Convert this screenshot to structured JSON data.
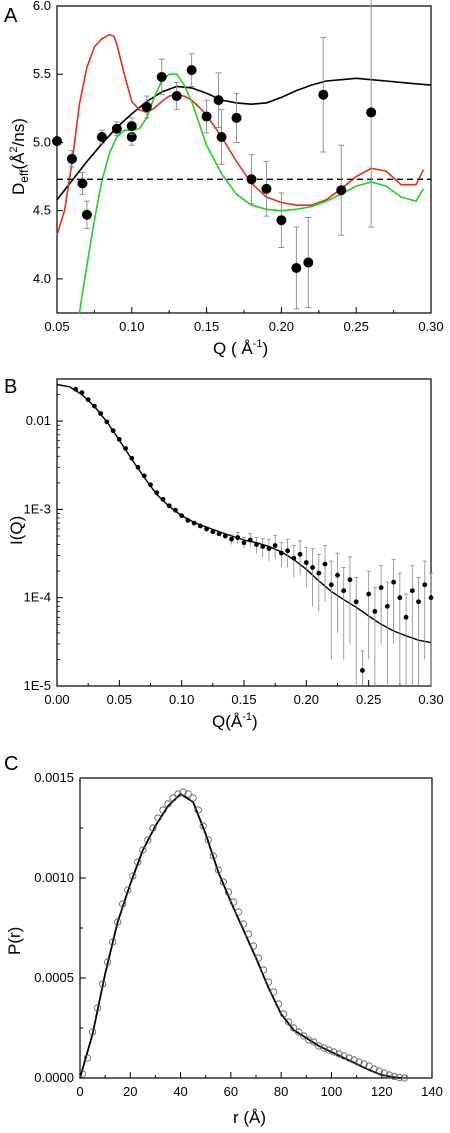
{
  "chart_data": [
    {
      "panel": "A",
      "type": "scatter",
      "xlabel": "Q (Å-1)",
      "ylabel": "Deff(Å2/ns)",
      "xlim": [
        0.05,
        0.3
      ],
      "ylim": [
        3.75,
        6.0
      ],
      "xticks": [
        "0.05",
        "0.10",
        "0.15",
        "0.20",
        "0.25",
        "0.30"
      ],
      "yticks": [
        "4.0",
        "4.5",
        "5.0",
        "5.5",
        "6.0"
      ],
      "points": [
        {
          "x": 0.05,
          "y": 5.01,
          "err": 0
        },
        {
          "x": 0.06,
          "y": 4.88,
          "err": 0.06
        },
        {
          "x": 0.067,
          "y": 4.7,
          "err": 0.08
        },
        {
          "x": 0.07,
          "y": 4.47,
          "err": 0.1
        },
        {
          "x": 0.08,
          "y": 5.04,
          "err": 0.05
        },
        {
          "x": 0.09,
          "y": 5.1,
          "err": 0.05
        },
        {
          "x": 0.1,
          "y": 5.04,
          "err": 0.06
        },
        {
          "x": 0.1,
          "y": 5.12,
          "err": 0.06
        },
        {
          "x": 0.11,
          "y": 5.26,
          "err": 0.08
        },
        {
          "x": 0.12,
          "y": 5.48,
          "err": 0.13
        },
        {
          "x": 0.13,
          "y": 5.34,
          "err": 0.1
        },
        {
          "x": 0.14,
          "y": 5.53,
          "err": 0.12
        },
        {
          "x": 0.15,
          "y": 5.19,
          "err": 0.12
        },
        {
          "x": 0.158,
          "y": 5.31,
          "err": 0.2
        },
        {
          "x": 0.16,
          "y": 5.04,
          "err": 0.2
        },
        {
          "x": 0.17,
          "y": 5.18,
          "err": 0.18
        },
        {
          "x": 0.18,
          "y": 4.73,
          "err": 0.18
        },
        {
          "x": 0.19,
          "y": 4.66,
          "err": 0.2
        },
        {
          "x": 0.2,
          "y": 4.43,
          "err": 0.2
        },
        {
          "x": 0.21,
          "y": 4.08,
          "err": 0.3
        },
        {
          "x": 0.218,
          "y": 4.12,
          "err": 0.33
        },
        {
          "x": 0.228,
          "y": 5.35,
          "err": 0.42
        },
        {
          "x": 0.24,
          "y": 4.65,
          "err": 0.33
        },
        {
          "x": 0.26,
          "y": 5.22,
          "err": 0.84
        }
      ],
      "series": [
        {
          "color": "#000000",
          "style": "solid",
          "x": [
            0.05,
            0.06,
            0.07,
            0.08,
            0.09,
            0.1,
            0.11,
            0.12,
            0.13,
            0.14,
            0.15,
            0.16,
            0.17,
            0.18,
            0.19,
            0.2,
            0.21,
            0.22,
            0.23,
            0.24,
            0.25,
            0.26,
            0.27,
            0.28,
            0.29,
            0.3
          ],
          "y": [
            4.58,
            4.72,
            4.86,
            4.99,
            5.11,
            5.21,
            5.3,
            5.37,
            5.41,
            5.4,
            5.36,
            5.31,
            5.29,
            5.28,
            5.29,
            5.33,
            5.38,
            5.42,
            5.45,
            5.46,
            5.47,
            5.46,
            5.45,
            5.44,
            5.43,
            5.42
          ]
        },
        {
          "color": "#e03020",
          "style": "solid",
          "x": [
            0.05,
            0.055,
            0.06,
            0.065,
            0.07,
            0.075,
            0.08,
            0.085,
            0.088,
            0.09,
            0.095,
            0.1,
            0.105,
            0.11,
            0.115,
            0.12,
            0.125,
            0.13,
            0.135,
            0.14,
            0.145,
            0.15,
            0.16,
            0.17,
            0.18,
            0.19,
            0.2,
            0.21,
            0.22,
            0.23,
            0.24,
            0.25,
            0.26,
            0.27,
            0.28,
            0.29,
            0.295
          ],
          "y": [
            4.32,
            4.5,
            4.85,
            5.28,
            5.55,
            5.7,
            5.76,
            5.79,
            5.78,
            5.72,
            5.5,
            5.3,
            5.24,
            5.22,
            5.25,
            5.3,
            5.34,
            5.35,
            5.34,
            5.31,
            5.26,
            5.2,
            5.04,
            4.86,
            4.7,
            4.6,
            4.56,
            4.54,
            4.54,
            4.58,
            4.66,
            4.75,
            4.81,
            4.79,
            4.69,
            4.69,
            4.8
          ]
        },
        {
          "color": "#20d020",
          "style": "solid",
          "x": [
            0.065,
            0.07,
            0.075,
            0.08,
            0.085,
            0.09,
            0.095,
            0.1,
            0.105,
            0.11,
            0.115,
            0.12,
            0.125,
            0.13,
            0.135,
            0.14,
            0.145,
            0.15,
            0.16,
            0.17,
            0.18,
            0.19,
            0.2,
            0.21,
            0.22,
            0.23,
            0.24,
            0.25,
            0.26,
            0.27,
            0.28,
            0.29,
            0.295
          ],
          "y": [
            3.75,
            4.1,
            4.43,
            4.72,
            4.92,
            5.04,
            5.09,
            5.09,
            5.1,
            5.18,
            5.33,
            5.45,
            5.5,
            5.5,
            5.42,
            5.3,
            5.14,
            4.98,
            4.77,
            4.62,
            4.54,
            4.51,
            4.5,
            4.51,
            4.53,
            4.57,
            4.62,
            4.68,
            4.71,
            4.68,
            4.6,
            4.57,
            4.66
          ]
        },
        {
          "color": "#000000",
          "style": "dashed",
          "x": [
            0.05,
            0.3
          ],
          "y": [
            4.73,
            4.73
          ]
        }
      ]
    },
    {
      "panel": "B",
      "type": "scatter",
      "xlabel": "Q(Å-1)",
      "ylabel": "I(Q)",
      "xscale": "log-y",
      "xlim": [
        0.0,
        0.3
      ],
      "ylim": [
        1e-05,
        0.03
      ],
      "xticks": [
        "0.00",
        "0.05",
        "0.10",
        "0.15",
        "0.20",
        "0.25",
        "0.30"
      ],
      "yticks": [
        {
          "label": "0.01",
          "v": 0.01
        },
        {
          "label": "1E-3",
          "v": 0.001
        },
        {
          "label": "1E-4",
          "v": 0.0001
        },
        {
          "label": "1E-5",
          "v": 1e-05
        }
      ],
      "fit": {
        "x": [
          0.0,
          0.01,
          0.02,
          0.03,
          0.04,
          0.05,
          0.06,
          0.07,
          0.08,
          0.09,
          0.1,
          0.11,
          0.12,
          0.13,
          0.14,
          0.15,
          0.16,
          0.17,
          0.18,
          0.19,
          0.2,
          0.21,
          0.22,
          0.23,
          0.24,
          0.25,
          0.26,
          0.27,
          0.28,
          0.29,
          0.3
        ],
        "y": [
          0.026,
          0.0245,
          0.02,
          0.0147,
          0.0098,
          0.0061,
          0.0037,
          0.0023,
          0.00148,
          0.00108,
          0.00085,
          0.00071,
          0.00063,
          0.00056,
          0.0005,
          0.00045,
          0.00042,
          0.00038,
          0.00033,
          0.00027,
          0.00021,
          0.000155,
          0.000118,
          9.5e-05,
          7.8e-05,
          6.2e-05,
          5e-05,
          4.2e-05,
          3.7e-05,
          3.3e-05,
          3.1e-05
        ]
      },
      "points": {
        "x": [
          0.015,
          0.02,
          0.025,
          0.03,
          0.035,
          0.04,
          0.045,
          0.05,
          0.055,
          0.06,
          0.065,
          0.07,
          0.075,
          0.08,
          0.085,
          0.09,
          0.095,
          0.1,
          0.105,
          0.11,
          0.115,
          0.12,
          0.125,
          0.13,
          0.135,
          0.14,
          0.145,
          0.15,
          0.155,
          0.16,
          0.165,
          0.17,
          0.175,
          0.18,
          0.185,
          0.19,
          0.195,
          0.2,
          0.205,
          0.21,
          0.215,
          0.22,
          0.225,
          0.23,
          0.235,
          0.24,
          0.245,
          0.25,
          0.255,
          0.26,
          0.265,
          0.27,
          0.275,
          0.28,
          0.285,
          0.29,
          0.295,
          0.3
        ],
        "y": [
          0.023,
          0.021,
          0.0175,
          0.0148,
          0.0122,
          0.0098,
          0.0078,
          0.0062,
          0.0049,
          0.0038,
          0.003,
          0.0024,
          0.0019,
          0.00155,
          0.0013,
          0.0011,
          0.00098,
          0.00085,
          0.00075,
          0.0007,
          0.00065,
          0.0006,
          0.00056,
          0.00053,
          0.0005,
          0.00046,
          0.00048,
          0.00042,
          0.00045,
          0.0004,
          0.00038,
          0.00036,
          0.00039,
          0.00032,
          0.00034,
          0.00028,
          0.00031,
          0.00025,
          0.00022,
          0.00019,
          0.00024,
          0.00014,
          0.00018,
          0.00012,
          0.00016,
          9e-05,
          1.5e-05,
          0.00011,
          7e-05,
          0.00013,
          8e-05,
          0.00015,
          0.0001,
          6e-05,
          0.00012,
          9e-05,
          0.00014,
          0.0001
        ],
        "err": [
          0,
          0,
          0,
          0,
          0,
          0,
          0,
          0,
          0,
          0,
          0,
          0,
          0,
          0,
          0,
          0,
          0,
          0,
          0,
          0,
          0,
          0,
          0,
          0,
          0,
          6e-05,
          7e-05,
          6e-05,
          8e-05,
          8e-05,
          9e-05,
          0.0001,
          0.00012,
          0.0001,
          0.00012,
          0.00011,
          0.00013,
          0.00012,
          0.00014,
          0.00012,
          0.00015,
          0.00012,
          0.00014,
          0.0001,
          0.00013,
          8e-05,
          1e-05,
          9e-05,
          6e-05,
          0.0001,
          7e-05,
          0.00012,
          9e-05,
          5e-05,
          0.00011,
          8e-05,
          0.00012,
          9e-05
        ]
      }
    },
    {
      "panel": "C",
      "type": "line",
      "xlabel": "r (Å)",
      "ylabel": "P(r)",
      "xlim": [
        0,
        140
      ],
      "ylim": [
        0,
        0.0015
      ],
      "xticks": [
        "0",
        "20",
        "40",
        "60",
        "80",
        "100",
        "120",
        "140"
      ],
      "yticks": [
        "0.0000",
        "0.0005",
        "0.0010",
        "0.0015"
      ],
      "series": [
        {
          "name": "",
          "color": "#000000",
          "style": "solid",
          "x": [
            0,
            5,
            10,
            15,
            20,
            25,
            30,
            35,
            40,
            45,
            50,
            55,
            60,
            65,
            70,
            75,
            80,
            85,
            90,
            95,
            100,
            105,
            110,
            115,
            120,
            125,
            128
          ],
          "y": [
            0,
            0.00022,
            0.00052,
            0.00078,
            0.00097,
            0.00114,
            0.00126,
            0.00136,
            0.00142,
            0.00138,
            0.00122,
            0.00103,
            0.00088,
            0.00074,
            0.0006,
            0.00045,
            0.00032,
            0.00024,
            0.0002,
            0.00016,
            0.00013,
            0.0001,
            7e-05,
            4e-05,
            1.5e-05,
            3e-06,
            0
          ]
        }
      ],
      "markers": {
        "style": "open-circle",
        "x": [
          1,
          3,
          5,
          7,
          9,
          11,
          13,
          15,
          17,
          19,
          21,
          23,
          25,
          27,
          29,
          31,
          33,
          35,
          37,
          39,
          41,
          43,
          45,
          47,
          49,
          51,
          53,
          55,
          57,
          59,
          61,
          63,
          65,
          67,
          69,
          71,
          73,
          75,
          77,
          79,
          81,
          83,
          85,
          87,
          89,
          91,
          93,
          95,
          97,
          99,
          101,
          103,
          105,
          107,
          109,
          111,
          113,
          115,
          117,
          119,
          121,
          123,
          125,
          127,
          129
        ],
        "y": [
          2e-05,
          0.0001,
          0.00023,
          0.00035,
          0.00047,
          0.00058,
          0.00068,
          0.00078,
          0.00087,
          0.00094,
          0.00101,
          0.00108,
          0.00114,
          0.00119,
          0.00125,
          0.0013,
          0.00134,
          0.00137,
          0.0014,
          0.00142,
          0.00143,
          0.00142,
          0.0014,
          0.00134,
          0.00126,
          0.00119,
          0.00111,
          0.00104,
          0.00098,
          0.00093,
          0.00088,
          0.00083,
          0.00077,
          0.00072,
          0.00066,
          0.0006,
          0.00054,
          0.00048,
          0.00043,
          0.00037,
          0.00032,
          0.00028,
          0.00025,
          0.00023,
          0.00021,
          0.00019,
          0.00018,
          0.00016,
          0.00015,
          0.00014,
          0.00013,
          0.00012,
          0.00011,
          0.0001,
          9e-05,
          8e-05,
          7e-05,
          6e-05,
          4.5e-05,
          3.5e-05,
          2.5e-05,
          1.5e-05,
          8e-06,
          3e-06,
          5e-07
        ]
      }
    }
  ],
  "labels": {
    "panel_a": "A",
    "panel_b": "B",
    "panel_c": "C",
    "a_ylabel": "D",
    "a_ylabel_sub": "eff",
    "a_ylabel_rest": "(Å",
    "a_ylabel_sup": "2",
    "a_ylabel_end": "/ns)",
    "a_xlabel": "Q  ( Å",
    "a_xlabel_sup": "-1",
    "a_xlabel_end": ")",
    "b_ylabel": "I(Q)",
    "b_xlabel": "Q(Å",
    "b_xlabel_sup": "-1",
    "b_xlabel_end": ")",
    "c_ylabel": "P(r)",
    "c_xlabel": "r (Å)"
  }
}
